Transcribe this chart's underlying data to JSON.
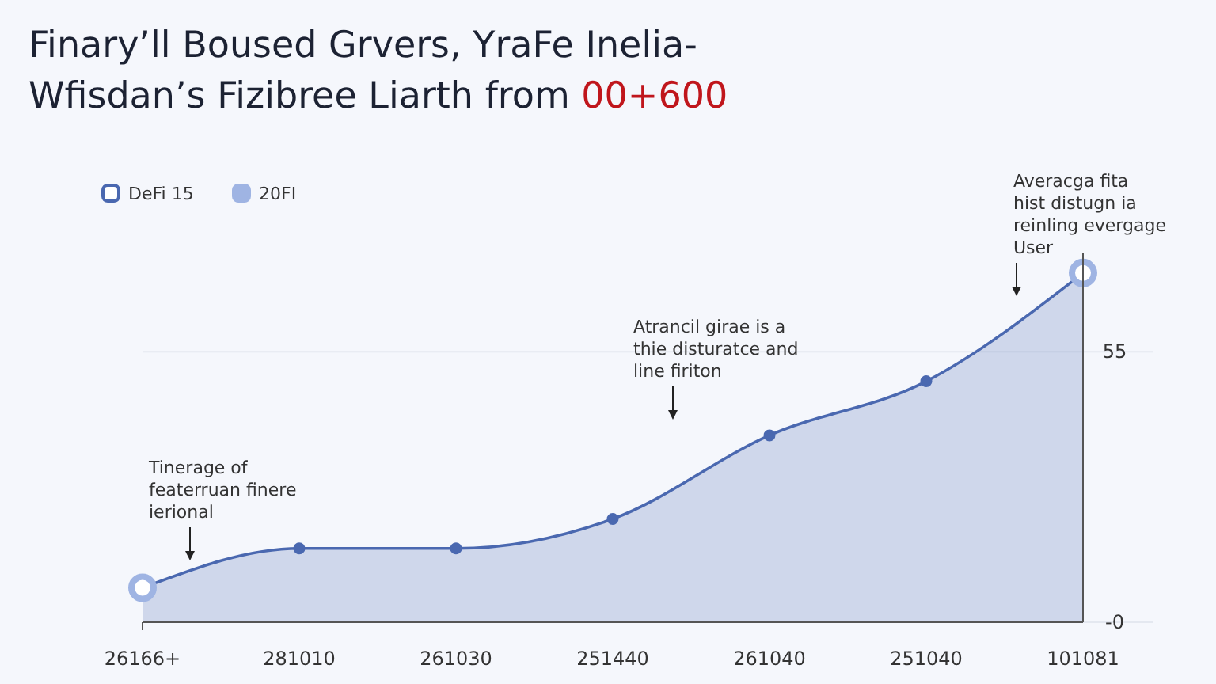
{
  "chart_data": {
    "type": "area",
    "title": "Finary’ll Boused Grvers, YraFe Inelia-",
    "subtitle": "Wfisdan’s Fizibree Liarth from 00+600",
    "categories": [
      "26166+",
      "281010",
      "261030",
      "251440",
      "261040",
      "251040",
      "101081"
    ],
    "ylim": [
      0,
      75
    ],
    "yticks": [
      {
        "value": 0,
        "label": "-0"
      },
      55
    ],
    "grid": "y",
    "legend": "top left",
    "marker": "circle",
    "series": [
      {
        "name": "DeFi 15",
        "color": "#4a68b0",
        "values": [
          7,
          15,
          15,
          21,
          38,
          49,
          71
        ]
      },
      {
        "name": "20FI",
        "type": "scatter",
        "color": "#9fb4e3",
        "x": [
          "26166+",
          "101081"
        ],
        "values": [
          7,
          71
        ]
      }
    ],
    "annotations": [
      "Tinerage of\nfeaterruan finere\nierional",
      "Atrancil girae is a\nthie disturatce and\nline firiton",
      "Averacga fita\nhist distugn ia\nreinling evergage\nUser"
    ]
  }
}
